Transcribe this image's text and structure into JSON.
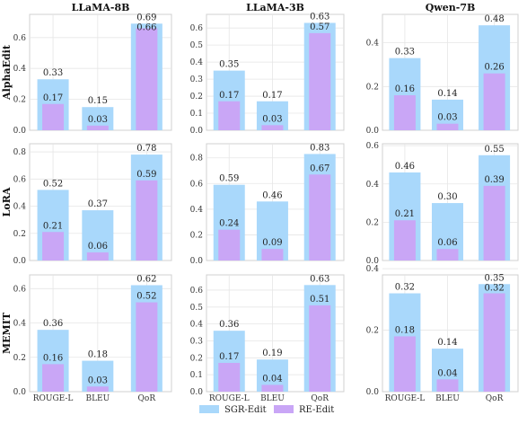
{
  "colors": {
    "sgr": "#a9d8fb",
    "re": "#c9a6f6",
    "grid": "#e6e6e6",
    "frame": "#d0d0d0"
  },
  "legend": [
    {
      "name": "SGR-Edit",
      "color_key": "sgr"
    },
    {
      "name": "RE-Edit",
      "color_key": "re"
    }
  ],
  "chart_data": {
    "type": "bar",
    "layout": "grid-3x3",
    "grid": true,
    "legend_position": "bottom-center",
    "columns": [
      "LLaMA-8B",
      "LLaMA-3B",
      "Qwen-7B"
    ],
    "rows": [
      "AlphaEdit",
      "LoRA",
      "MEMIT"
    ],
    "categories": [
      "ROUGE-L",
      "BLEU",
      "QoR"
    ],
    "panels": [
      {
        "row": "AlphaEdit",
        "column": "LLaMA-8B",
        "ylim": [
          0,
          0.75
        ],
        "yticks": [
          "0.0",
          "0.2",
          "0.4",
          "0.6"
        ],
        "series": [
          {
            "name": "SGR-Edit",
            "values": [
              0.33,
              0.15,
              0.69
            ]
          },
          {
            "name": "RE-Edit",
            "values": [
              0.17,
              0.03,
              0.66
            ]
          }
        ]
      },
      {
        "row": "AlphaEdit",
        "column": "LLaMA-3B",
        "ylim": [
          0,
          0.68
        ],
        "yticks": [
          "0.0",
          "0.1",
          "0.2",
          "0.3",
          "0.4",
          "0.5",
          "0.6"
        ],
        "series": [
          {
            "name": "SGR-Edit",
            "values": [
              0.35,
              0.17,
              0.63
            ]
          },
          {
            "name": "RE-Edit",
            "values": [
              0.17,
              0.03,
              0.57
            ]
          }
        ]
      },
      {
        "row": "AlphaEdit",
        "column": "Qwen-7B",
        "ylim": [
          0,
          0.53
        ],
        "yticks": [
          "0.0",
          "0.2",
          "0.4"
        ],
        "series": [
          {
            "name": "SGR-Edit",
            "values": [
              0.33,
              0.14,
              0.48
            ]
          },
          {
            "name": "RE-Edit",
            "values": [
              0.16,
              0.03,
              0.26
            ]
          }
        ]
      },
      {
        "row": "LoRA",
        "column": "LLaMA-8B",
        "ylim": [
          0,
          0.86
        ],
        "yticks": [
          "0.0",
          "0.2",
          "0.4",
          "0.6",
          "0.8"
        ],
        "series": [
          {
            "name": "SGR-Edit",
            "values": [
              0.52,
              0.37,
              0.78
            ]
          },
          {
            "name": "RE-Edit",
            "values": [
              0.21,
              0.06,
              0.59
            ]
          }
        ]
      },
      {
        "row": "LoRA",
        "column": "LLaMA-3B",
        "ylim": [
          0,
          0.91
        ],
        "yticks": [
          "0.0",
          "0.2",
          "0.4",
          "0.6",
          "0.8"
        ],
        "series": [
          {
            "name": "SGR-Edit",
            "values": [
              0.59,
              0.46,
              0.83
            ]
          },
          {
            "name": "RE-Edit",
            "values": [
              0.24,
              0.09,
              0.67
            ]
          }
        ]
      },
      {
        "row": "LoRA",
        "column": "Qwen-7B",
        "ylim": [
          0,
          0.61
        ],
        "yticks": [
          "0.0",
          "0.2",
          "0.4",
          "0.6"
        ],
        "series": [
          {
            "name": "SGR-Edit",
            "values": [
              0.46,
              0.3,
              0.55
            ]
          },
          {
            "name": "RE-Edit",
            "values": [
              0.21,
              0.06,
              0.39
            ]
          }
        ]
      },
      {
        "row": "MEMIT",
        "column": "LLaMA-8B",
        "ylim": [
          0,
          0.68
        ],
        "yticks": [
          "0.0",
          "0.2",
          "0.4",
          "0.6"
        ],
        "series": [
          {
            "name": "SGR-Edit",
            "values": [
              0.36,
              0.18,
              0.62
            ]
          },
          {
            "name": "RE-Edit",
            "values": [
              0.16,
              0.03,
              0.52
            ]
          }
        ]
      },
      {
        "row": "MEMIT",
        "column": "LLaMA-3B",
        "ylim": [
          0,
          0.69
        ],
        "yticks": [
          "0.0",
          "0.1",
          "0.2",
          "0.3",
          "0.4",
          "0.5",
          "0.6"
        ],
        "series": [
          {
            "name": "SGR-Edit",
            "values": [
              0.36,
              0.19,
              0.63
            ]
          },
          {
            "name": "RE-Edit",
            "values": [
              0.17,
              0.04,
              0.51
            ]
          }
        ]
      },
      {
        "row": "MEMIT",
        "column": "Qwen-7B",
        "ylim": [
          0,
          0.38
        ],
        "yticks": [
          "0.0",
          "0.2",
          "0.4"
        ],
        "series": [
          {
            "name": "SGR-Edit",
            "values": [
              0.32,
              0.14,
              0.35
            ]
          },
          {
            "name": "RE-Edit",
            "values": [
              0.18,
              0.04,
              0.32
            ]
          }
        ]
      }
    ]
  }
}
